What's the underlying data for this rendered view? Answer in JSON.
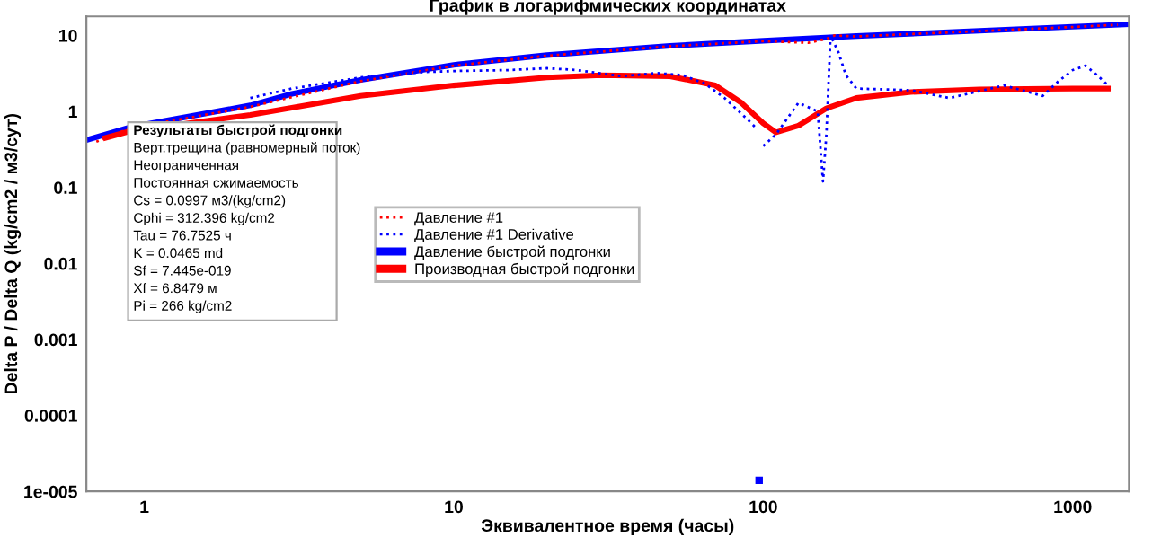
{
  "chart_data": {
    "type": "line",
    "title": "График в логарифмических координатах",
    "xlabel": "Эквивалентное время (часы)",
    "ylabel": "Delta P / Delta Q (kg/cm2 / м3/сут)",
    "log": "xy",
    "xlim": [
      0.65,
      1520
    ],
    "ylim": [
      1e-05,
      17.8
    ],
    "xticks": [
      1,
      10,
      100,
      1000
    ],
    "yticks": [
      10,
      1,
      0.1,
      0.01,
      0.001,
      0.0001,
      {
        "value": 1e-05,
        "label": "1e-005"
      }
    ],
    "grid": false,
    "legend": "center left",
    "series": [
      {
        "name": "Давление #1",
        "color": "#ff0000",
        "line_style": "dotted",
        "x": [
          0.7,
          0.9,
          2.2,
          5,
          10,
          20,
          50,
          100,
          140,
          160,
          170,
          200,
          500,
          1000,
          1400
        ],
        "values": [
          0.4,
          0.6,
          1.15,
          2.5,
          4.0,
          5.4,
          7.2,
          8.4,
          8.0,
          9.0,
          10,
          9.7,
          11.4,
          12.9,
          13.8
        ]
      },
      {
        "name": "Давление #1 Derivative",
        "color": "#0000ff",
        "line_style": "dotted",
        "x": [
          2.2,
          3,
          5,
          8,
          10,
          15,
          20,
          25,
          35,
          45,
          55,
          65,
          75,
          90,
          95,
          96,
          97,
          98,
          100,
          110,
          130,
          150,
          156,
          160,
          165,
          175,
          185,
          200,
          300,
          400,
          600,
          800,
          900,
          1000,
          1100,
          1200,
          1300
        ],
        "values": [
          1.5,
          2.0,
          2.8,
          3.3,
          3.4,
          3.5,
          3.7,
          3.5,
          2.9,
          3.2,
          3.0,
          2.3,
          1.5,
          0.75,
          0.6,
          null,
          1.4e-05,
          null,
          0.35,
          0.5,
          1.3,
          1.0,
          0.12,
          0.5,
          10,
          6,
          3,
          2.0,
          1.9,
          1.5,
          2.2,
          1.6,
          2.5,
          3.5,
          4.0,
          3.0,
          2.2
        ]
      },
      {
        "name": "Давление быстрой подгонки",
        "color": "#0000ff",
        "line_style": "solid",
        "x": [
          0.65,
          0.9,
          2.2,
          3,
          5,
          10,
          20,
          50,
          100,
          200,
          500,
          1000,
          1520
        ],
        "values": [
          0.42,
          0.62,
          1.2,
          1.7,
          2.6,
          4.1,
          5.5,
          7.3,
          8.5,
          9.8,
          11.5,
          13,
          14
        ]
      },
      {
        "name": "Производная быстрой подгонки",
        "color": "#ff0000",
        "line_style": "solid",
        "x": [
          0.75,
          0.9,
          2.2,
          5,
          10,
          20,
          30,
          50,
          70,
          85,
          100,
          110,
          130,
          160,
          200,
          300,
          500,
          1000,
          1300
        ],
        "values": [
          0.45,
          0.55,
          0.9,
          1.6,
          2.2,
          2.8,
          3.0,
          2.9,
          2.2,
          1.3,
          0.7,
          0.53,
          0.65,
          1.1,
          1.5,
          1.8,
          1.95,
          2.0,
          2.0
        ]
      }
    ],
    "annotations": [
      "Результаты быстрой подгонки",
      "Верт.трещина (равномерный поток)",
      "Неограниченная",
      "Постоянная сжимаемость",
      "Cs = 0.0997 м3/(kg/cm2)",
      "Cphi = 312.396 kg/cm2",
      "Tau = 76.7525 ч",
      "K = 0.0465 md",
      "Sf = 7.445e-019",
      "Xf = 6.8479 м",
      "Pi = 266 kg/cm2"
    ]
  }
}
